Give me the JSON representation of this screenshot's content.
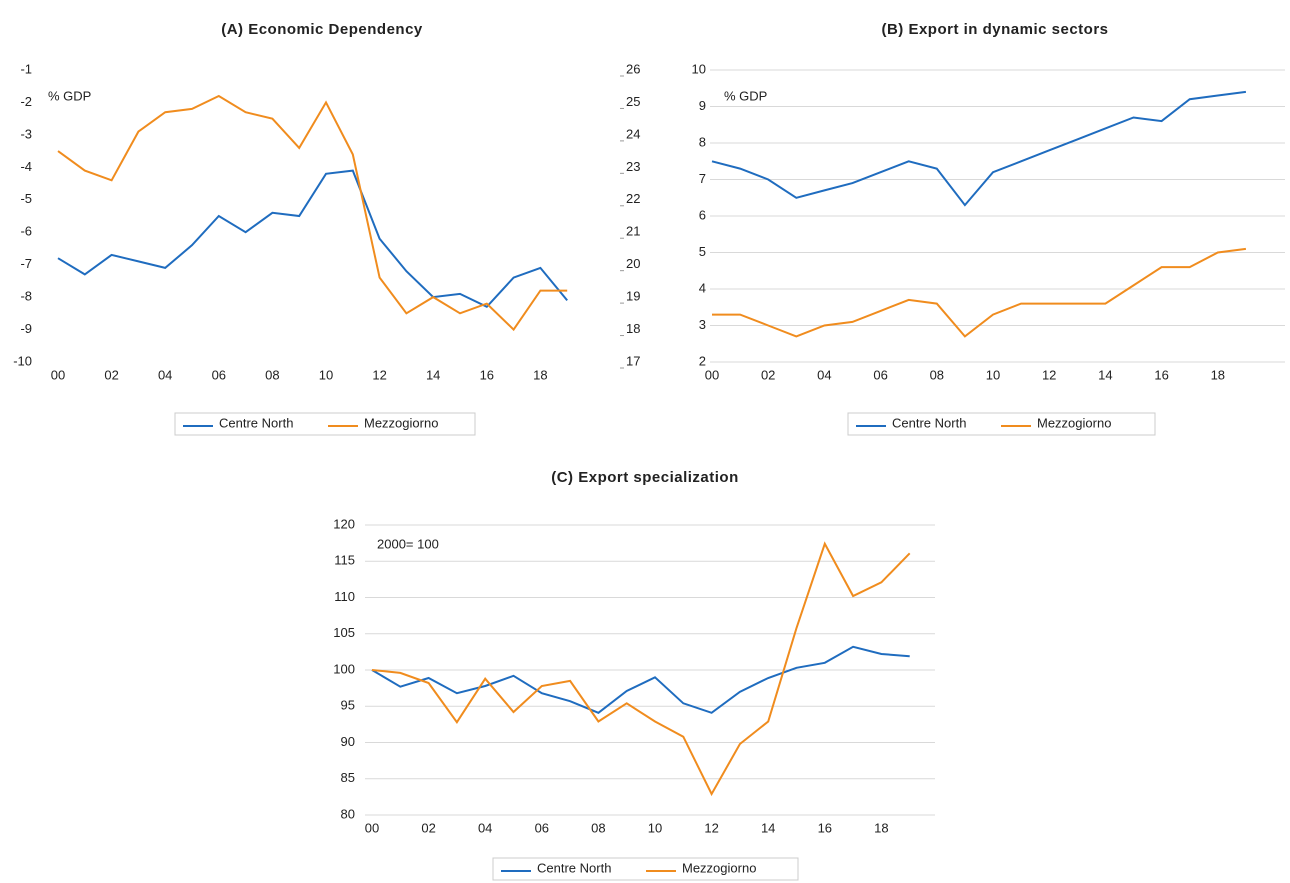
{
  "chart_data": [
    {
      "type": "line",
      "title": "(A) Economic Dependency",
      "annotation": "% GDP",
      "categories": [
        "00",
        null,
        "02",
        null,
        "04",
        null,
        "06",
        null,
        "08",
        null,
        "10",
        null,
        "12",
        null,
        "14",
        null,
        "16",
        null,
        "18",
        null
      ],
      "series": [
        {
          "name": "Centre North",
          "color": "#1f6cbf",
          "values": [
            -6.8,
            -7.3,
            -6.7,
            -6.9,
            -7.1,
            -6.4,
            -5.5,
            -6.0,
            -5.4,
            -5.5,
            -4.2,
            -4.1,
            -6.2,
            -7.2,
            -8.0,
            -7.9,
            -8.3,
            -7.4,
            -7.1,
            -8.1
          ]
        },
        {
          "name": "Mezzogiorno",
          "color": "#f08c1e",
          "axis": "y2",
          "values": [
            23.5,
            22.9,
            22.6,
            24.1,
            24.7,
            24.8,
            25.2,
            24.7,
            24.5,
            23.6,
            25.0,
            23.4,
            19.6,
            18.5,
            19.0,
            18.5,
            18.8,
            18.0,
            19.2,
            19.2
          ]
        }
      ],
      "ylim": [
        -10,
        -1
      ],
      "yticks": [
        -10,
        -9,
        -8,
        -7,
        -6,
        -5,
        -4,
        -3,
        -2,
        -1
      ],
      "y2lim": [
        17,
        26
      ],
      "y2ticks": [
        17,
        18,
        19,
        20,
        21,
        22,
        23,
        24,
        25,
        26
      ],
      "grid": false
    },
    {
      "type": "line",
      "title": "(B) Export in dynamic sectors",
      "annotation": "% GDP",
      "categories": [
        "00",
        null,
        "02",
        null,
        "04",
        null,
        "06",
        null,
        "08",
        null,
        "10",
        null,
        "12",
        null,
        "14",
        null,
        "16",
        null,
        "18",
        null
      ],
      "series": [
        {
          "name": "Centre North",
          "color": "#1f6cbf",
          "values": [
            7.5,
            7.3,
            7.0,
            6.5,
            6.7,
            6.9,
            7.2,
            7.5,
            7.3,
            6.3,
            7.2,
            7.5,
            7.8,
            8.1,
            8.4,
            8.7,
            8.6,
            9.2,
            9.3,
            9.4
          ]
        },
        {
          "name": "Mezzogiorno",
          "color": "#f08c1e",
          "values": [
            3.3,
            3.3,
            3.0,
            2.7,
            3.0,
            3.1,
            3.4,
            3.7,
            3.6,
            2.7,
            3.3,
            3.6,
            3.6,
            3.6,
            3.6,
            4.1,
            4.6,
            4.6,
            5.0,
            5.1
          ]
        }
      ],
      "ylim": [
        2,
        10
      ],
      "yticks": [
        2,
        3,
        4,
        5,
        6,
        7,
        8,
        9,
        10
      ],
      "grid": true
    },
    {
      "type": "line",
      "title": "(C) Export specialization",
      "annotation": "2000= 100",
      "categories": [
        "00",
        null,
        "02",
        null,
        "04",
        null,
        "06",
        null,
        "08",
        null,
        "10",
        null,
        "12",
        null,
        "14",
        null,
        "16",
        null,
        "18",
        null
      ],
      "series": [
        {
          "name": "Centre North",
          "color": "#1f6cbf",
          "values": [
            100,
            97.7,
            98.9,
            96.8,
            97.8,
            99.2,
            96.8,
            95.7,
            94.1,
            97.1,
            99.0,
            95.4,
            94.1,
            97.0,
            98.9,
            100.3,
            101.0,
            103.2,
            102.2,
            101.9
          ]
        },
        {
          "name": "Mezzogiorno",
          "color": "#f08c1e",
          "values": [
            100,
            99.6,
            98.2,
            92.8,
            98.8,
            94.2,
            97.8,
            98.5,
            92.9,
            95.4,
            92.9,
            90.8,
            82.9,
            89.8,
            92.9,
            105.8,
            117.4,
            110.2,
            112.1,
            116.1
          ]
        }
      ],
      "ylim": [
        80,
        120
      ],
      "yticks": [
        80,
        85,
        90,
        95,
        100,
        105,
        110,
        115,
        120
      ],
      "grid": true
    }
  ]
}
